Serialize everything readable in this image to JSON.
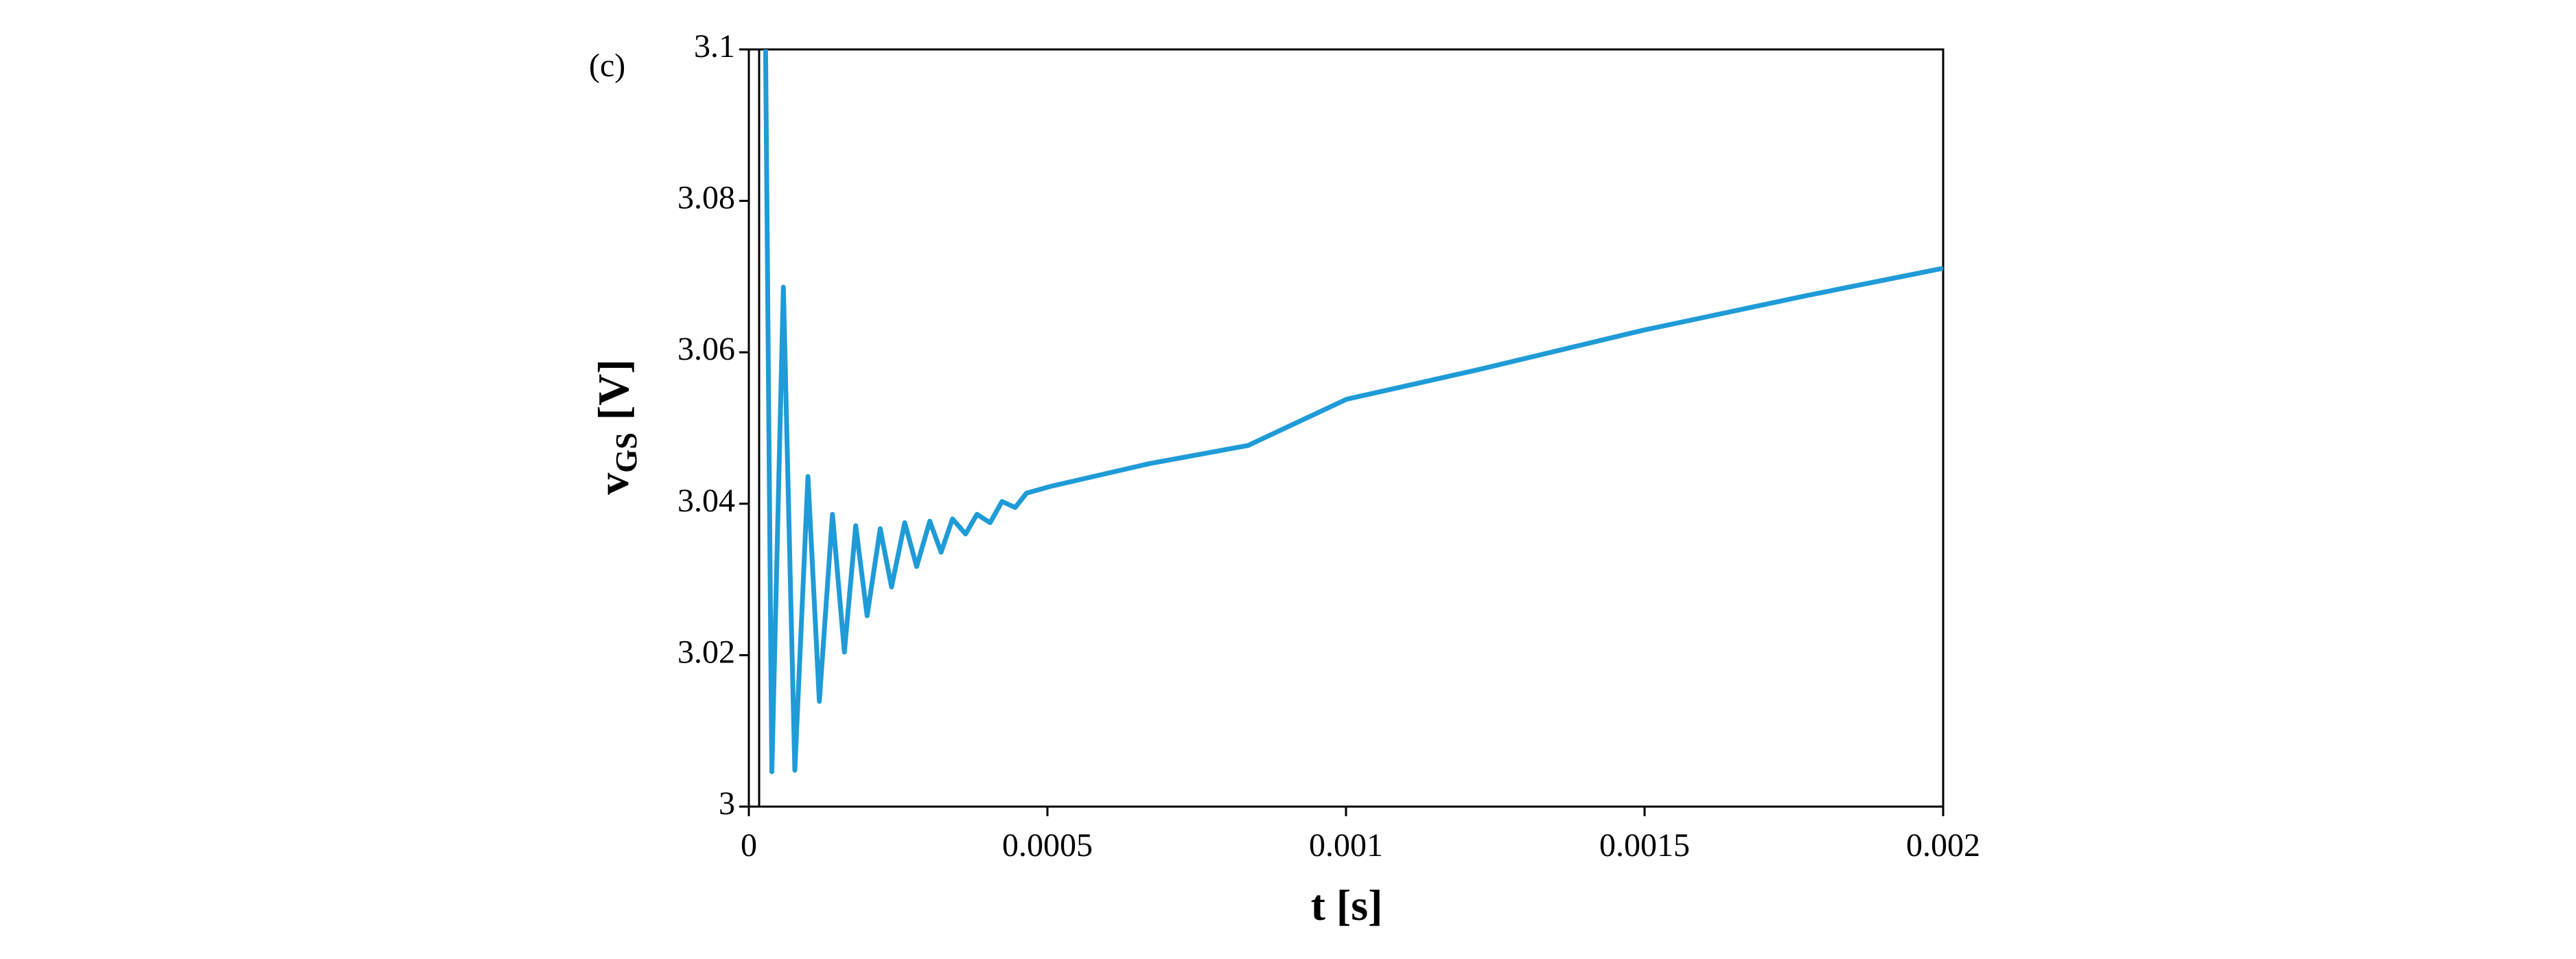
{
  "chart_data": {
    "type": "line",
    "annotation": "(c)",
    "xlabel": "t [s]",
    "ylabel": "v",
    "ylabel_subscript": "GS",
    "ylabel_unit": "[V]",
    "x": [
      2.8e-05,
      3.85e-05,
      5.78e-05,
      7.7e-05,
      9.9e-05,
      0.000118,
      0.00014,
      0.00016,
      0.000179,
      0.000198,
      0.00022,
      0.000239,
      0.000261,
      0.000281,
      0.000303,
      0.000322,
      0.000341,
      0.000363,
      0.000382,
      0.000404,
      0.000424,
      0.000446,
      0.000465,
      0.000506,
      0.000671,
      0.000836,
      0.001001,
      0.001221,
      0.001497,
      0.001772,
      0.002
    ],
    "series": [
      {
        "color": "#1f9bd7",
        "values": [
          3.1,
          3.0046,
          3.0686,
          3.0048,
          3.0436,
          3.0139,
          3.0386,
          3.0204,
          3.0371,
          3.0252,
          3.0367,
          3.029,
          3.0375,
          3.0317,
          3.0377,
          3.0336,
          3.038,
          3.036,
          3.0386,
          3.0375,
          3.0403,
          3.0395,
          3.0414,
          3.0423,
          3.0453,
          3.0477,
          3.0538,
          3.0577,
          3.0629,
          3.0675,
          3.0711
        ]
      }
    ],
    "xlim": [
      0,
      0.002
    ],
    "xticks": [
      0,
      0.0005,
      0.001,
      0.0015,
      0.002
    ],
    "ylim": [
      3,
      3.1
    ],
    "yticks": [
      3,
      3.02,
      3.04,
      3.06,
      3.08,
      3.1
    ],
    "grid": false
  }
}
